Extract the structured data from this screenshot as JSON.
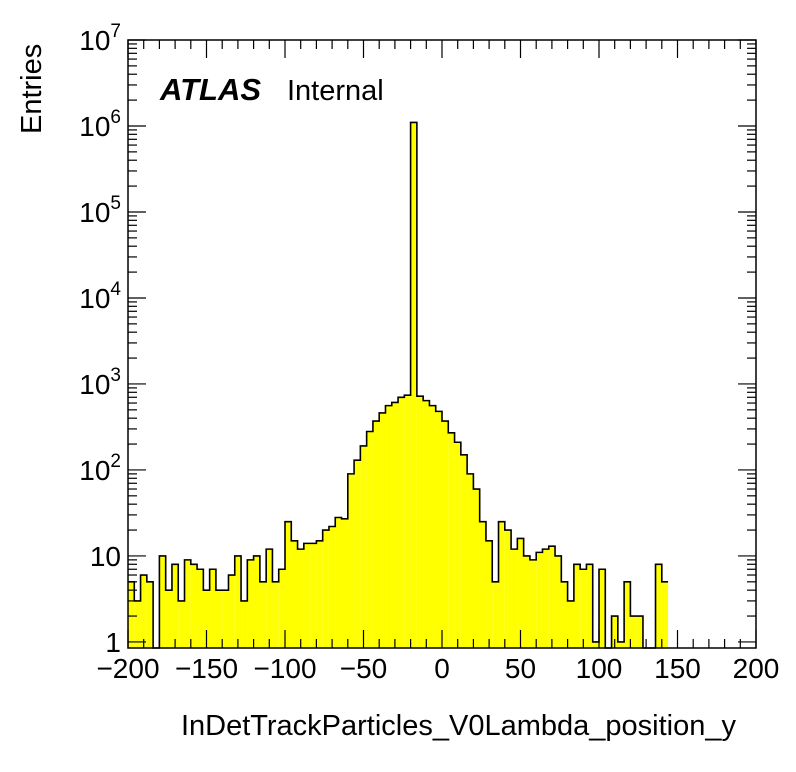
{
  "chart_data": {
    "type": "bar",
    "style": "histogram-step",
    "fill_color": "#ffff00",
    "line_color": "#000000",
    "xlabel": "InDetTrackParticles_V0Lambda_position_y",
    "ylabel": "Entries",
    "xlim": [
      -200,
      200
    ],
    "ylim": [
      0.85,
      10000000
    ],
    "yscale": "log",
    "grid": false,
    "bin_width": 4,
    "x_ticks": [
      "−200",
      "−150",
      "−100",
      "−50",
      "0",
      "50",
      "100",
      "150",
      "200"
    ],
    "y_ticks": [
      {
        "base": "1",
        "exp": ""
      },
      {
        "base": "10",
        "exp": ""
      },
      {
        "base": "10",
        "exp": "2"
      },
      {
        "base": "10",
        "exp": "3"
      },
      {
        "base": "10",
        "exp": "4"
      },
      {
        "base": "10",
        "exp": "5"
      },
      {
        "base": "10",
        "exp": "6"
      },
      {
        "base": "10",
        "exp": "7"
      }
    ],
    "bin_edges_start": -200,
    "values": [
      5,
      3,
      6,
      5,
      0,
      10,
      4,
      8,
      3,
      9,
      8,
      7,
      4,
      7,
      4,
      4,
      6,
      10,
      3,
      9,
      10,
      5,
      12,
      5,
      7,
      25,
      15,
      12,
      14,
      14,
      15,
      20,
      22,
      28,
      27,
      90,
      130,
      190,
      280,
      370,
      460,
      560,
      610,
      700,
      740,
      1100000,
      720,
      640,
      560,
      480,
      370,
      270,
      210,
      150,
      90,
      60,
      25,
      15,
      5,
      25,
      20,
      12,
      16,
      10,
      9,
      11,
      12,
      13,
      10,
      5,
      3,
      8,
      7,
      8,
      1,
      7,
      0,
      2,
      1,
      5,
      2,
      2,
      0,
      0,
      8,
      5
    ],
    "annotation": {
      "bold_italic": "ATLAS",
      "normal": "Internal"
    }
  }
}
